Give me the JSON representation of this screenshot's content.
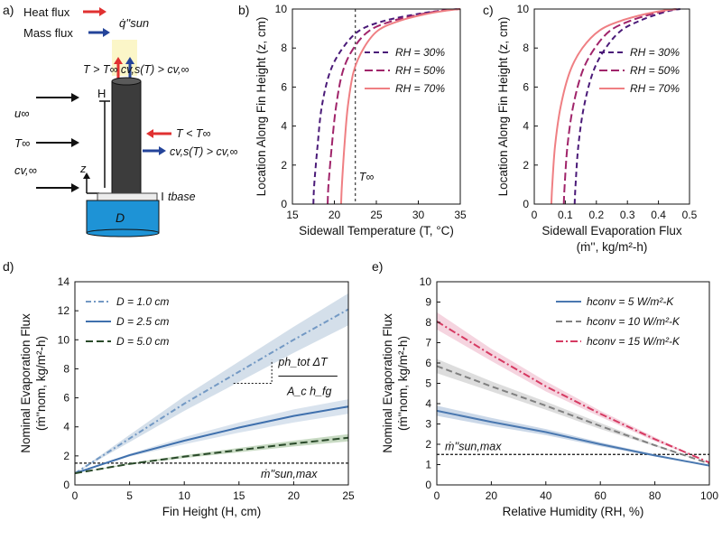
{
  "panel_labels": [
    "a)",
    "b)",
    "c)",
    "d)",
    "e)"
  ],
  "schematic": {
    "legend_heat": "Heat flux",
    "legend_mass": "Mass flux",
    "q_sun": "q̇''sun",
    "top_label": "T > T∞   cv,s(T) > cv,∞",
    "side_label_1": "T < T∞",
    "side_label_2": "cv,s(T) > cv,∞",
    "u_inf": "u∞",
    "T_inf": "T∞",
    "c_inf": "cv,∞",
    "H": "H",
    "z": "z",
    "t_base": "tbase",
    "D": "D",
    "colors": {
      "heat": "#e03131",
      "mass": "#24449a",
      "sun": "#fbf6c8",
      "water": "#1e93d6"
    }
  },
  "chart_data": [
    {
      "id": "b",
      "type": "line",
      "xlabel": "Sidewall Temperature (T, °C)",
      "ylabel": "Location Along Fin Height (z, cm)",
      "xlim": [
        15,
        35
      ],
      "ylim": [
        0,
        10
      ],
      "xticks": [
        15,
        20,
        25,
        30,
        35
      ],
      "yticks": [
        0,
        2,
        4,
        6,
        8,
        10
      ],
      "legend_position": "top-right",
      "annotation": {
        "text": "T∞",
        "x": 22.5
      },
      "series": [
        {
          "name": "RH = 30%",
          "color": "#4a1a78",
          "dash": "6 4",
          "x": [
            17.5,
            17.6,
            18.0,
            18.5,
            19.5,
            21,
            23,
            26,
            30,
            33,
            35
          ],
          "y": [
            0,
            1,
            3,
            5,
            6.8,
            8,
            8.9,
            9.4,
            9.75,
            9.93,
            10
          ]
        },
        {
          "name": "RH = 50%",
          "color": "#a0246a",
          "dash": "9 4",
          "x": [
            19.2,
            19.3,
            19.7,
            20.2,
            21,
            22.3,
            24.2,
            27,
            30.5,
            33,
            35
          ],
          "y": [
            0,
            1,
            3,
            5,
            6.8,
            8,
            8.9,
            9.4,
            9.75,
            9.93,
            10
          ]
        },
        {
          "name": "RH = 70%",
          "color": "#ef7f83",
          "dash": "",
          "x": [
            20.8,
            20.9,
            21.2,
            21.6,
            22.3,
            23.5,
            25.2,
            27.8,
            31,
            33.5,
            35
          ],
          "y": [
            0,
            1,
            3,
            5,
            6.8,
            8,
            8.9,
            9.4,
            9.75,
            9.93,
            10
          ]
        }
      ]
    },
    {
      "id": "c",
      "type": "line",
      "xlabel": "Sidewall Evaporation Flux",
      "xlabel2": "(ṁ'', kg/m²-h)",
      "ylabel": "Location Along Fin Height (z, cm)",
      "xlim": [
        0,
        0.5
      ],
      "ylim": [
        0,
        10
      ],
      "xticks": [
        0,
        0.1,
        0.2,
        0.3,
        0.4,
        0.5
      ],
      "yticks": [
        0,
        2,
        4,
        6,
        8,
        10
      ],
      "legend_position": "top-right",
      "series": [
        {
          "name": "RH = 30%",
          "color": "#4a1a78",
          "dash": "6 4",
          "x": [
            0.13,
            0.133,
            0.142,
            0.16,
            0.19,
            0.23,
            0.28,
            0.34,
            0.4,
            0.44,
            0.47
          ],
          "y": [
            0,
            1,
            3,
            5,
            6.8,
            8,
            8.9,
            9.4,
            9.75,
            9.93,
            10
          ]
        },
        {
          "name": "RH = 50%",
          "color": "#a0246a",
          "dash": "9 4",
          "x": [
            0.095,
            0.098,
            0.107,
            0.125,
            0.155,
            0.195,
            0.245,
            0.31,
            0.38,
            0.43,
            0.46
          ],
          "y": [
            0,
            1,
            3,
            5,
            6.8,
            8,
            8.9,
            9.4,
            9.75,
            9.93,
            10
          ]
        },
        {
          "name": "RH = 70%",
          "color": "#ef7f83",
          "dash": "",
          "x": [
            0.055,
            0.058,
            0.067,
            0.085,
            0.115,
            0.155,
            0.21,
            0.28,
            0.36,
            0.42,
            0.455
          ],
          "y": [
            0,
            1,
            3,
            5,
            6.8,
            8,
            8.9,
            9.4,
            9.75,
            9.93,
            10
          ]
        }
      ]
    },
    {
      "id": "d",
      "type": "line",
      "xlabel": "Fin Height (H, cm)",
      "ylabel": "Nominal Evaporation Flux",
      "ylabel2": "(ṁ''nom, kg/m²-h)",
      "xlim": [
        0,
        25
      ],
      "ylim": [
        0,
        14
      ],
      "xticks": [
        0,
        5,
        10,
        15,
        20,
        25
      ],
      "yticks": [
        0,
        2,
        4,
        6,
        8,
        10,
        12,
        14
      ],
      "legend_position": "top-left",
      "reference_line": {
        "label": "ṁ''sun,max",
        "y": 1.5
      },
      "annotation": {
        "text": "ph_tot ΔT / A_c h_fg"
      },
      "series": [
        {
          "name": "D = 1.0 cm",
          "color": "#7399c4",
          "band": "#cfdbe8",
          "dash": "6 3 2 3",
          "x": [
            0,
            5,
            10,
            15,
            20,
            25
          ],
          "y": [
            0.8,
            3.2,
            5.6,
            7.8,
            10.0,
            12.1
          ],
          "lower": [
            0.8,
            2.95,
            5.1,
            7.1,
            9.1,
            11.0
          ],
          "upper": [
            0.8,
            3.45,
            6.1,
            8.5,
            10.9,
            13.2
          ]
        },
        {
          "name": "D = 2.5 cm",
          "color": "#3f70ad",
          "band": "#d5e0ec",
          "dash": "",
          "x": [
            0,
            5,
            10,
            15,
            20,
            25
          ],
          "y": [
            0.8,
            2.05,
            3.05,
            3.95,
            4.75,
            5.4
          ],
          "lower": [
            0.8,
            1.95,
            2.8,
            3.6,
            4.3,
            4.9
          ],
          "upper": [
            0.8,
            2.15,
            3.3,
            4.3,
            5.2,
            5.9
          ]
        },
        {
          "name": "D = 5.0 cm",
          "color": "#2a4a2a",
          "band": "#c2d6bd",
          "dash": "8 4",
          "x": [
            0,
            5,
            10,
            15,
            20,
            25
          ],
          "y": [
            0.8,
            1.45,
            1.95,
            2.4,
            2.85,
            3.25
          ],
          "lower": [
            0.8,
            1.4,
            1.85,
            2.25,
            2.65,
            3.0
          ],
          "upper": [
            0.8,
            1.5,
            2.05,
            2.55,
            3.05,
            3.5
          ]
        }
      ]
    },
    {
      "id": "e",
      "type": "line",
      "xlabel": "Relative Humidity (RH, %)",
      "ylabel": "Nominal Evaporation Flux",
      "ylabel2": "(ṁ''nom, kg/m²-h)",
      "xlim": [
        0,
        100
      ],
      "ylim": [
        0,
        10
      ],
      "xticks": [
        0,
        20,
        40,
        60,
        80,
        100
      ],
      "yticks": [
        0,
        1,
        2,
        3,
        4,
        5,
        6,
        7,
        8,
        9,
        10
      ],
      "legend_position": "top-right",
      "reference_line": {
        "label": "ṁ''sun,max",
        "y": 1.5
      },
      "series": [
        {
          "name": "hconv = 5 W/m²-K",
          "color": "#4a78b0",
          "band": "#c5d4e6",
          "dash": "",
          "x": [
            0,
            20,
            40,
            60,
            80,
            100
          ],
          "y": [
            3.65,
            3.1,
            2.6,
            2.0,
            1.45,
            0.95
          ],
          "lower": [
            3.4,
            2.9,
            2.45,
            1.9,
            1.4,
            0.95
          ],
          "upper": [
            3.9,
            3.3,
            2.75,
            2.1,
            1.5,
            0.95
          ]
        },
        {
          "name": "hconv = 10 W/m²-K",
          "color": "#808080",
          "band": "#d9d9d9",
          "dash": "7 4",
          "x": [
            0,
            20,
            40,
            60,
            80,
            100
          ],
          "y": [
            5.85,
            4.85,
            3.9,
            2.9,
            1.95,
            1.05
          ],
          "lower": [
            5.5,
            4.6,
            3.7,
            2.75,
            1.9,
            1.05
          ],
          "upper": [
            6.2,
            5.1,
            4.1,
            3.05,
            2.0,
            1.05
          ]
        },
        {
          "name": "hconv = 15 W/m²-K",
          "color": "#d63a62",
          "band": "#f4cfdc",
          "dash": "8 3 2 3",
          "x": [
            0,
            20,
            40,
            60,
            80,
            100
          ],
          "y": [
            8.05,
            6.4,
            4.85,
            3.5,
            2.25,
            1.1
          ],
          "lower": [
            7.65,
            6.1,
            4.6,
            3.35,
            2.15,
            1.1
          ],
          "upper": [
            8.5,
            6.7,
            5.1,
            3.65,
            2.35,
            1.1
          ]
        }
      ]
    }
  ]
}
